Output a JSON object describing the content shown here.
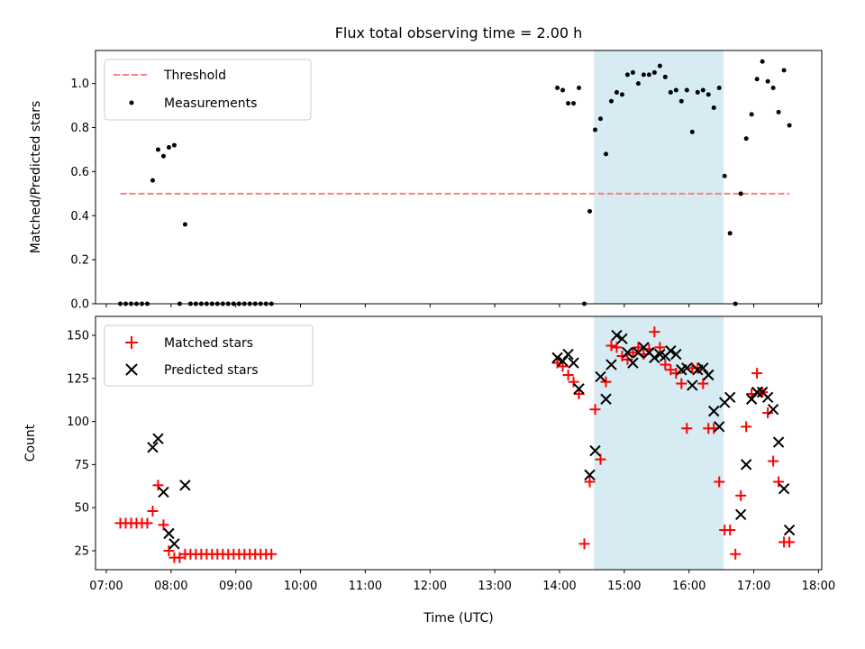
{
  "chart_data": [
    {
      "type": "scatter",
      "title": "Flux total observing time = 2.00 h",
      "ylabel": "Matched/Predicted stars",
      "xlabel": "",
      "xlim": [
        "06:50",
        "18:03"
      ],
      "ylim": [
        0,
        1.15
      ],
      "yticks": [
        0.0,
        0.2,
        0.4,
        0.6,
        0.8,
        1.0
      ],
      "ytick_labels": [
        "0.0",
        "0.2",
        "0.4",
        "0.6",
        "0.8",
        "1.0"
      ],
      "shaded_interval": [
        "14:32",
        "16:32"
      ],
      "shade_color": "#add8e6",
      "legend": {
        "placement": "upper left",
        "entries": [
          "Threshold",
          "Measurements"
        ]
      },
      "series": [
        {
          "name": "Threshold",
          "kind": "dashed-line",
          "color": "#ff7f7f",
          "x": [
            "07:13",
            "17:33"
          ],
          "y": [
            0.5,
            0.5
          ]
        },
        {
          "name": "Measurements",
          "kind": "dot",
          "color": "#000000",
          "x": [
            "07:13",
            "07:18",
            "07:23",
            "07:28",
            "07:33",
            "07:38",
            "07:43",
            "07:48",
            "07:53",
            "07:58",
            "08:03",
            "08:08",
            "08:13",
            "08:18",
            "08:23",
            "08:28",
            "08:33",
            "08:38",
            "08:43",
            "08:48",
            "08:53",
            "08:58",
            "09:03",
            "09:08",
            "09:13",
            "09:18",
            "09:23",
            "09:28",
            "09:33",
            "13:58",
            "14:03",
            "14:08",
            "14:13",
            "14:18",
            "14:23",
            "14:28",
            "14:33",
            "14:38",
            "14:43",
            "14:48",
            "14:53",
            "14:58",
            "15:03",
            "15:08",
            "15:13",
            "15:18",
            "15:23",
            "15:28",
            "15:33",
            "15:38",
            "15:43",
            "15:48",
            "15:53",
            "15:58",
            "16:03",
            "16:08",
            "16:13",
            "16:18",
            "16:23",
            "16:28",
            "16:33",
            "16:38",
            "16:43",
            "16:48",
            "16:53",
            "16:58",
            "17:03",
            "17:08",
            "17:13",
            "17:18",
            "17:23",
            "17:28",
            "17:33"
          ],
          "y": [
            0,
            0,
            0,
            0,
            0,
            0,
            0.56,
            0.7,
            0.67,
            0.71,
            0.72,
            0,
            0.36,
            0,
            0,
            0,
            0,
            0,
            0,
            0,
            0,
            0,
            0,
            0,
            0,
            0,
            0,
            0,
            0,
            0.98,
            0.97,
            0.91,
            0.91,
            0.98,
            0,
            0.42,
            0.79,
            0.84,
            0.68,
            0.92,
            0.96,
            0.95,
            1.04,
            1.05,
            1.0,
            1.04,
            1.04,
            1.05,
            1.08,
            1.03,
            0.96,
            0.97,
            0.92,
            0.97,
            0.78,
            0.96,
            0.97,
            0.95,
            0.89,
            0.98,
            0.58,
            0.32,
            0,
            0.5,
            0.75,
            0.86,
            1.02,
            1.1,
            1.01,
            0.98,
            0.87,
            1.06,
            0.81
          ]
        }
      ]
    },
    {
      "type": "scatter",
      "title": "",
      "ylabel": "Count",
      "xlabel": "Time (UTC)",
      "xlim": [
        "06:50",
        "18:03"
      ],
      "ylim": [
        14,
        161
      ],
      "yticks": [
        25,
        50,
        75,
        100,
        125,
        150
      ],
      "ytick_labels": [
        "25",
        "50",
        "75",
        "100",
        "125",
        "150"
      ],
      "xticks": [
        "07:00",
        "08:00",
        "09:00",
        "10:00",
        "11:00",
        "12:00",
        "13:00",
        "14:00",
        "15:00",
        "16:00",
        "17:00",
        "18:00"
      ],
      "xtick_labels": [
        "07:00",
        "08:00",
        "09:00",
        "10:00",
        "11:00",
        "12:00",
        "13:00",
        "14:00",
        "15:00",
        "16:00",
        "17:00",
        "18:00"
      ],
      "shaded_interval": [
        "14:32",
        "16:32"
      ],
      "shade_color": "#add8e6",
      "legend": {
        "placement": "upper left",
        "entries": [
          "Matched stars",
          "Predicted stars"
        ]
      },
      "series": [
        {
          "name": "Matched stars",
          "kind": "plus",
          "color": "#ff0000",
          "x": [
            "07:13",
            "07:18",
            "07:23",
            "07:28",
            "07:33",
            "07:38",
            "07:43",
            "07:48",
            "07:53",
            "07:58",
            "08:03",
            "08:08",
            "08:13",
            "08:18",
            "08:23",
            "08:28",
            "08:33",
            "08:38",
            "08:43",
            "08:48",
            "08:53",
            "08:58",
            "09:03",
            "09:08",
            "09:13",
            "09:18",
            "09:23",
            "09:28",
            "09:33",
            "13:58",
            "14:03",
            "14:08",
            "14:13",
            "14:18",
            "14:23",
            "14:28",
            "14:33",
            "14:38",
            "14:43",
            "14:48",
            "14:53",
            "14:58",
            "15:03",
            "15:08",
            "15:13",
            "15:18",
            "15:23",
            "15:28",
            "15:33",
            "15:38",
            "15:43",
            "15:48",
            "15:53",
            "15:58",
            "16:03",
            "16:08",
            "16:13",
            "16:18",
            "16:23",
            "16:28",
            "16:33",
            "16:38",
            "16:43",
            "16:48",
            "16:53",
            "16:58",
            "17:03",
            "17:08",
            "17:13",
            "17:18",
            "17:23",
            "17:28",
            "17:33"
          ],
          "y": [
            41,
            41,
            41,
            41,
            41,
            41,
            48,
            63,
            40,
            25,
            21,
            21,
            23,
            23,
            23,
            23,
            23,
            23,
            23,
            23,
            23,
            23,
            23,
            23,
            23,
            23,
            23,
            23,
            23,
            134,
            132,
            127,
            123,
            116,
            29,
            65,
            107,
            78,
            123,
            144,
            143,
            138,
            136,
            140,
            143,
            139,
            142,
            152,
            143,
            133,
            130,
            128,
            122,
            96,
            131,
            131,
            122,
            96,
            96,
            65,
            37,
            37,
            23,
            57,
            97,
            116,
            128,
            117,
            105,
            77,
            65,
            30,
            30
          ]
        },
        {
          "name": "Predicted stars",
          "kind": "x",
          "color": "#000000",
          "x": [
            "07:43",
            "07:48",
            "07:53",
            "07:58",
            "08:03",
            "08:13",
            "13:58",
            "14:03",
            "14:08",
            "14:13",
            "14:18",
            "14:28",
            "14:33",
            "14:38",
            "14:43",
            "14:48",
            "14:53",
            "14:58",
            "15:03",
            "15:08",
            "15:13",
            "15:18",
            "15:23",
            "15:28",
            "15:33",
            "15:38",
            "15:43",
            "15:48",
            "15:53",
            "15:58",
            "16:03",
            "16:08",
            "16:13",
            "16:18",
            "16:23",
            "16:28",
            "16:33",
            "16:38",
            "16:48",
            "16:53",
            "16:58",
            "17:03",
            "17:08",
            "17:13",
            "17:18",
            "17:23",
            "17:28",
            "17:33"
          ],
          "y": [
            85,
            90,
            59,
            35,
            29,
            63,
            137,
            135,
            139,
            134,
            119,
            69,
            83,
            126,
            113,
            133,
            150,
            148,
            140,
            134,
            140,
            143,
            140,
            137,
            139,
            138,
            141,
            139,
            130,
            131,
            121,
            130,
            131,
            127,
            106,
            97,
            111,
            114,
            46,
            75,
            113,
            117,
            117,
            114,
            107,
            88,
            61,
            37
          ]
        }
      ]
    }
  ]
}
